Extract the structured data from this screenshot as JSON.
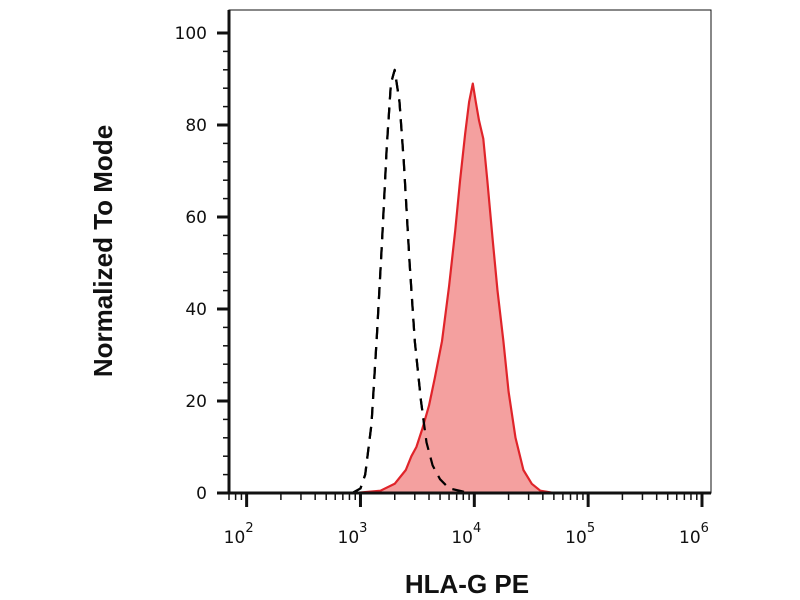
{
  "chart_data": {
    "type": "area",
    "title": "",
    "xlabel": "HLA-G PE",
    "ylabel": "Normalized To Mode",
    "xscale": "log",
    "xlim": [
      70,
      1200000
    ],
    "ylim": [
      0,
      100
    ],
    "x_ticks": [
      {
        "value": 100,
        "base": "10",
        "exp": "2"
      },
      {
        "value": 1000,
        "base": "10",
        "exp": "3"
      },
      {
        "value": 10000,
        "base": "10",
        "exp": "4"
      },
      {
        "value": 100000,
        "base": "10",
        "exp": "5"
      },
      {
        "value": 1000000,
        "base": "10",
        "exp": "6"
      }
    ],
    "y_ticks": [
      {
        "value": 0,
        "label": "0"
      },
      {
        "value": 20,
        "label": "20"
      },
      {
        "value": 40,
        "label": "40"
      },
      {
        "value": 60,
        "label": "60"
      },
      {
        "value": 80,
        "label": "80"
      },
      {
        "value": 100,
        "label": "100"
      }
    ],
    "grid": false,
    "legend": "none",
    "series": [
      {
        "style": "dashed-line",
        "color": "#000000",
        "x": [
          850,
          1000,
          1100,
          1250,
          1400,
          1550,
          1700,
          1850,
          2000,
          2200,
          2400,
          2700,
          3000,
          3400,
          3800,
          4300,
          5000,
          6000,
          8000,
          10000
        ],
        "y": [
          0,
          1,
          4,
          15,
          35,
          55,
          75,
          89,
          92,
          85,
          72,
          50,
          33,
          20,
          11,
          6,
          3,
          1,
          0.3,
          0
        ]
      },
      {
        "style": "filled",
        "color": "#e0242a",
        "fill": "#f4a09f",
        "x": [
          900,
          1500,
          2000,
          2500,
          2800,
          3100,
          3500,
          4000,
          4500,
          5200,
          6000,
          6800,
          7500,
          8300,
          9000,
          9700,
          10300,
          11000,
          12000,
          13000,
          14500,
          16000,
          18000,
          20000,
          23000,
          27000,
          32000,
          38000,
          50000
        ],
        "y": [
          0,
          0.5,
          2,
          5,
          8,
          10,
          14,
          19,
          25,
          33,
          45,
          57,
          68,
          78,
          85,
          89,
          85,
          81,
          77,
          68,
          55,
          44,
          33,
          22,
          12,
          5,
          2,
          0.5,
          0
        ]
      }
    ]
  }
}
